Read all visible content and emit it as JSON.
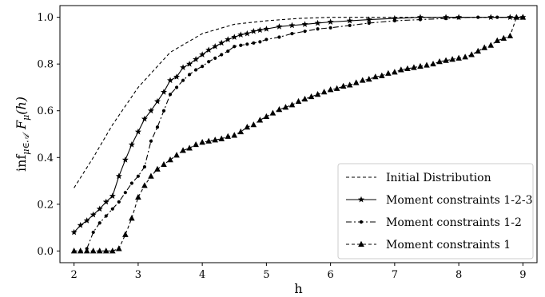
{
  "chart_data": {
    "type": "line",
    "xlabel": "h",
    "ylabel": "inf_{μ∈A} F_μ(h)",
    "ylabel_parts": {
      "inf": "inf",
      "sub": "μ∈𝒜",
      "F": "F",
      "fsub": "μ",
      "arg": "(h)"
    },
    "xlim": [
      1.78,
      9.22
    ],
    "ylim": [
      -0.05,
      1.05
    ],
    "xticks": [
      "2",
      "3",
      "4",
      "5",
      "6",
      "7",
      "8",
      "9"
    ],
    "yticks": [
      "0.0",
      "0.2",
      "0.4",
      "0.6",
      "0.8",
      "1.0"
    ],
    "grid": false,
    "legend_position": "bottom-right",
    "series": [
      {
        "name": "Initial Distribution",
        "style": "dashed",
        "marker": "none",
        "x": [
          2.0,
          2.3,
          2.6,
          3.0,
          3.5,
          4.0,
          4.5,
          5.0,
          5.5,
          6.0,
          7.0,
          8.0,
          9.0
        ],
        "y": [
          0.27,
          0.4,
          0.54,
          0.7,
          0.85,
          0.93,
          0.97,
          0.985,
          0.995,
          1.0,
          1.0,
          1.0,
          1.0
        ]
      },
      {
        "name": "Moment constraints 1-2-3",
        "style": "solid",
        "marker": "star",
        "x": [
          2.0,
          2.1,
          2.2,
          2.3,
          2.4,
          2.5,
          2.6,
          2.7,
          2.8,
          2.9,
          3.0,
          3.1,
          3.2,
          3.3,
          3.4,
          3.5,
          3.6,
          3.7,
          3.8,
          3.9,
          4.0,
          4.1,
          4.2,
          4.3,
          4.4,
          4.5,
          4.6,
          4.7,
          4.8,
          4.9,
          5.0,
          5.2,
          5.4,
          5.6,
          5.8,
          6.0,
          6.3,
          6.6,
          7.0,
          7.4,
          7.8,
          8.0,
          8.5,
          8.8,
          9.0
        ],
        "y": [
          0.08,
          0.11,
          0.13,
          0.155,
          0.18,
          0.21,
          0.235,
          0.32,
          0.39,
          0.455,
          0.51,
          0.565,
          0.6,
          0.64,
          0.68,
          0.73,
          0.745,
          0.785,
          0.8,
          0.82,
          0.84,
          0.86,
          0.875,
          0.89,
          0.905,
          0.915,
          0.925,
          0.93,
          0.94,
          0.945,
          0.95,
          0.96,
          0.965,
          0.97,
          0.975,
          0.98,
          0.985,
          0.99,
          0.995,
          1.0,
          1.0,
          1.0,
          1.0,
          1.0,
          1.0
        ]
      },
      {
        "name": "Moment constraints 1-2",
        "style": "dashdot",
        "marker": "dot",
        "x": [
          2.2,
          2.3,
          2.4,
          2.5,
          2.6,
          2.7,
          2.8,
          2.9,
          3.0,
          3.1,
          3.2,
          3.3,
          3.4,
          3.5,
          3.6,
          3.7,
          3.8,
          3.9,
          4.0,
          4.1,
          4.2,
          4.3,
          4.4,
          4.5,
          4.6,
          4.7,
          4.8,
          4.9,
          5.0,
          5.2,
          5.4,
          5.6,
          5.8,
          6.0,
          6.3,
          6.6,
          7.0,
          7.4,
          7.8,
          8.0,
          8.3,
          8.6,
          9.0
        ],
        "y": [
          0.01,
          0.08,
          0.12,
          0.15,
          0.18,
          0.21,
          0.25,
          0.29,
          0.32,
          0.36,
          0.47,
          0.53,
          0.6,
          0.67,
          0.7,
          0.73,
          0.755,
          0.775,
          0.79,
          0.81,
          0.825,
          0.84,
          0.855,
          0.875,
          0.88,
          0.885,
          0.89,
          0.895,
          0.905,
          0.915,
          0.93,
          0.94,
          0.95,
          0.955,
          0.965,
          0.975,
          0.985,
          0.99,
          0.995,
          0.998,
          1.0,
          1.0,
          1.0
        ]
      },
      {
        "name": "Moment constraints 1",
        "style": "dashed",
        "marker": "triangle",
        "x": [
          2.0,
          2.1,
          2.2,
          2.3,
          2.4,
          2.5,
          2.6,
          2.7,
          2.8,
          2.9,
          3.0,
          3.1,
          3.2,
          3.3,
          3.4,
          3.5,
          3.6,
          3.7,
          3.8,
          3.9,
          4.0,
          4.1,
          4.2,
          4.3,
          4.4,
          4.5,
          4.6,
          4.7,
          4.8,
          4.9,
          5.0,
          5.1,
          5.2,
          5.3,
          5.4,
          5.5,
          5.6,
          5.7,
          5.8,
          5.9,
          6.0,
          6.1,
          6.2,
          6.3,
          6.4,
          6.5,
          6.6,
          6.7,
          6.8,
          6.9,
          7.0,
          7.1,
          7.2,
          7.3,
          7.4,
          7.5,
          7.6,
          7.7,
          7.8,
          7.9,
          8.0,
          8.1,
          8.2,
          8.3,
          8.4,
          8.5,
          8.6,
          8.7,
          8.8,
          8.9,
          9.0
        ],
        "y": [
          0.0,
          0.0,
          0.0,
          0.0,
          0.0,
          0.0,
          0.0,
          0.01,
          0.07,
          0.14,
          0.23,
          0.28,
          0.32,
          0.35,
          0.37,
          0.39,
          0.41,
          0.43,
          0.44,
          0.455,
          0.465,
          0.47,
          0.475,
          0.48,
          0.49,
          0.495,
          0.51,
          0.53,
          0.54,
          0.56,
          0.575,
          0.59,
          0.605,
          0.615,
          0.625,
          0.64,
          0.65,
          0.66,
          0.67,
          0.68,
          0.69,
          0.695,
          0.705,
          0.71,
          0.72,
          0.73,
          0.735,
          0.745,
          0.75,
          0.76,
          0.765,
          0.775,
          0.78,
          0.785,
          0.79,
          0.795,
          0.8,
          0.81,
          0.815,
          0.82,
          0.825,
          0.83,
          0.84,
          0.855,
          0.87,
          0.88,
          0.9,
          0.91,
          0.92,
          1.0,
          1.0
        ]
      }
    ]
  }
}
